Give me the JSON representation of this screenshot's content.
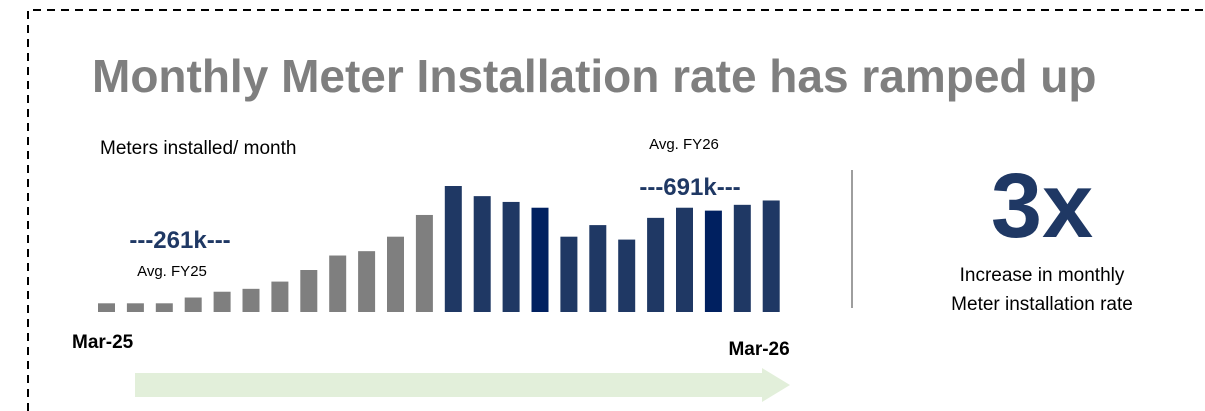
{
  "chart_data": {
    "type": "bar",
    "title": "Monthly Meter Installation rate has ramped up",
    "subtitle": "Meters installed/ month",
    "categories": [
      "Mar-25",
      null,
      null,
      null,
      null,
      null,
      null,
      null,
      null,
      null,
      null,
      null,
      null,
      null,
      null,
      null,
      null,
      null,
      null,
      null,
      null,
      null,
      null,
      "Mar-26"
    ],
    "values": [
      60,
      60,
      60,
      100,
      140,
      160,
      210,
      290,
      390,
      420,
      520,
      670,
      870,
      800,
      760,
      720,
      520,
      600,
      500,
      650,
      720,
      700,
      740,
      770
    ],
    "colors": [
      "#7f7f7f",
      "#7f7f7f",
      "#7f7f7f",
      "#7f7f7f",
      "#7f7f7f",
      "#7f7f7f",
      "#7f7f7f",
      "#7f7f7f",
      "#7f7f7f",
      "#7f7f7f",
      "#7f7f7f",
      "#7f7f7f",
      "#1f3864",
      "#1f3864",
      "#1f3864",
      "#002060",
      "#1f3864",
      "#1f3864",
      "#1f3864",
      "#1f3864",
      "#1f3864",
      "#002060",
      "#1f3864",
      "#1f3864"
    ],
    "annotations": {
      "fy25_value": "---261k---",
      "fy25_label": "Avg. FY25",
      "fy26_label": "Avg. FY26",
      "fy26_value": "---691k---",
      "multiple": "3x",
      "multiple_caption_1": "Increase in monthly",
      "multiple_caption_2": "Meter installation rate"
    }
  }
}
